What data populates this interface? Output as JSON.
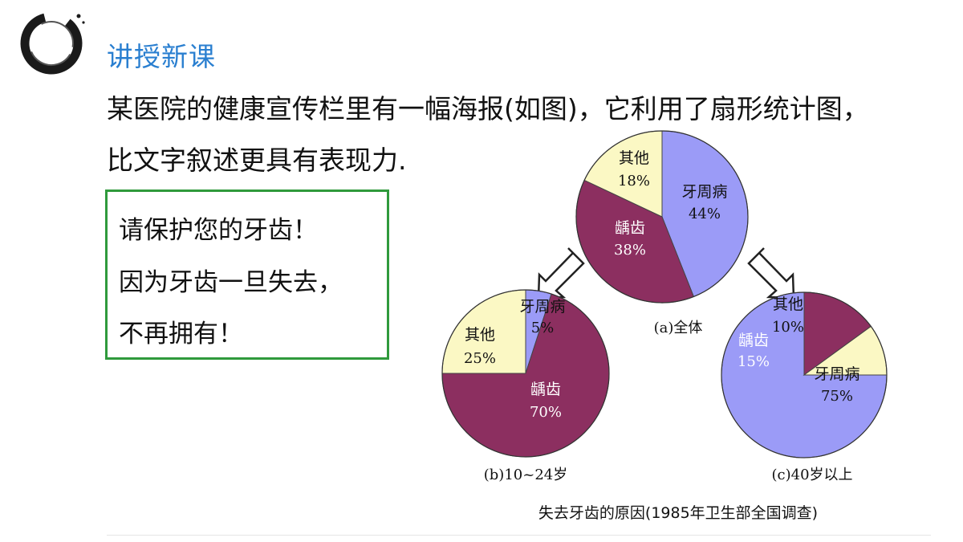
{
  "header": {
    "title": "讲授新课"
  },
  "intro": {
    "line1": "某医院的健康宣传栏里有一幅海报(如图)，它利用了扇形统计图，",
    "line2": "比文字叙述更具有表现力."
  },
  "poster": {
    "line1": "请保护您的牙齿！",
    "line2": "因为牙齿一旦失去，",
    "line3": "不再拥有！"
  },
  "figure_caption": "失去牙齿的原因(1985年卫生部全国调查)",
  "colors": {
    "periodontal": "#9b9bf7",
    "caries": "#8c2f60",
    "other": "#fbf8c4",
    "heading": "#2a7fd0",
    "poster_border": "#2f9a3c"
  },
  "chart_data": [
    {
      "type": "pie",
      "title": "(a)全体",
      "slices": [
        {
          "label": "牙周病",
          "value": 44,
          "value_label": "44%",
          "color": "#9b9bf7"
        },
        {
          "label": "龋齿",
          "value": 38,
          "value_label": "38%",
          "color": "#8c2f60"
        },
        {
          "label": "其他",
          "value": 18,
          "value_label": "18%",
          "color": "#fbf8c4"
        }
      ]
    },
    {
      "type": "pie",
      "title": "(b)10~24岁",
      "slices": [
        {
          "label": "牙周病",
          "value": 5,
          "value_label": "5%",
          "color": "#9b9bf7"
        },
        {
          "label": "龋齿",
          "value": 70,
          "value_label": "70%",
          "color": "#8c2f60"
        },
        {
          "label": "其他",
          "value": 25,
          "value_label": "25%",
          "color": "#fbf8c4"
        }
      ]
    },
    {
      "type": "pie",
      "title": "(c)40岁以上",
      "slices": [
        {
          "label": "牙周病",
          "value": 75,
          "value_label": "75%",
          "color": "#9b9bf7"
        },
        {
          "label": "龋齿",
          "value": 15,
          "value_label": "15%",
          "color": "#8c2f60"
        },
        {
          "label": "其他",
          "value": 10,
          "value_label": "10%",
          "color": "#fbf8c4"
        }
      ]
    }
  ]
}
